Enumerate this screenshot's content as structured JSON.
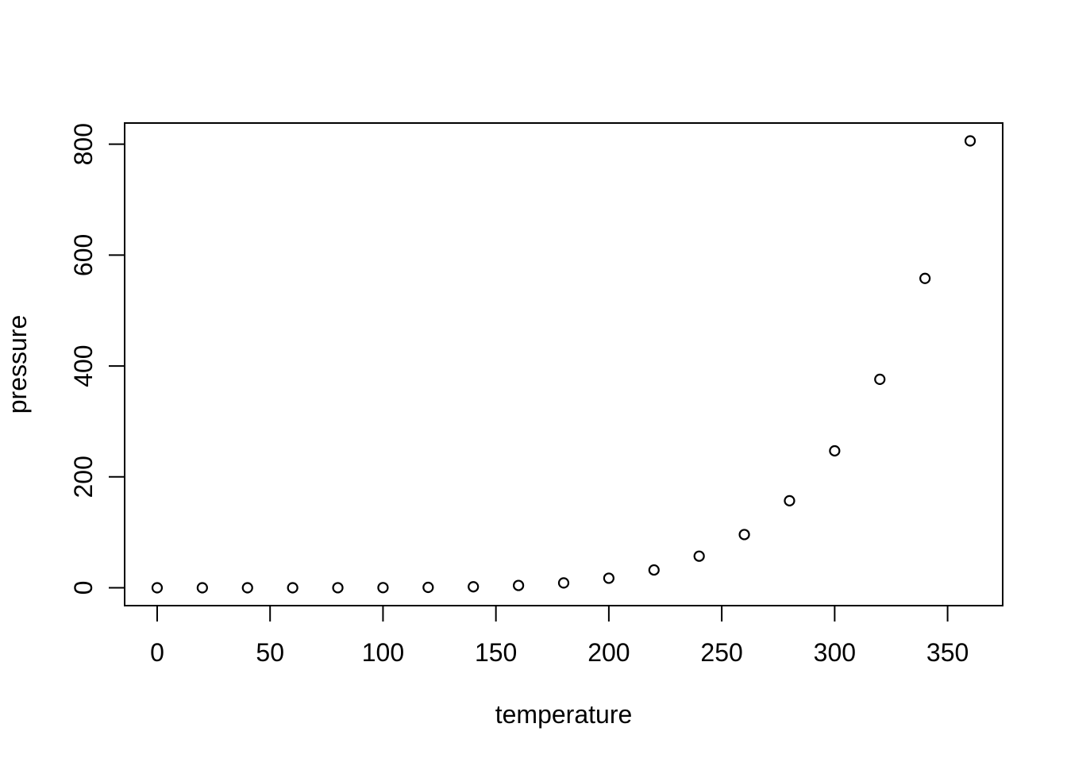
{
  "figure": {
    "background": "#ffffff",
    "foreground": "#000000"
  },
  "chart_data": {
    "type": "scatter",
    "title": "",
    "xlabel": "temperature",
    "ylabel": "pressure",
    "x": [
      0,
      20,
      40,
      60,
      80,
      100,
      120,
      140,
      160,
      180,
      200,
      220,
      240,
      260,
      280,
      300,
      320,
      340,
      360
    ],
    "y": [
      0.0002,
      0.0012,
      0.006,
      0.03,
      0.09,
      0.27,
      0.75,
      1.85,
      4.2,
      8.8,
      17.3,
      32.1,
      57,
      96,
      157,
      247,
      376,
      558,
      806
    ],
    "x_ticks": [
      0,
      50,
      100,
      150,
      200,
      250,
      300,
      350
    ],
    "y_ticks": [
      0,
      200,
      400,
      600,
      800
    ],
    "xlim": [
      -14.4,
      374.4
    ],
    "ylim": [
      -32.2,
      838.2
    ],
    "grid": false,
    "legend": false,
    "marker": "open-circle",
    "marker_color": "#000000",
    "point_count": 19
  }
}
